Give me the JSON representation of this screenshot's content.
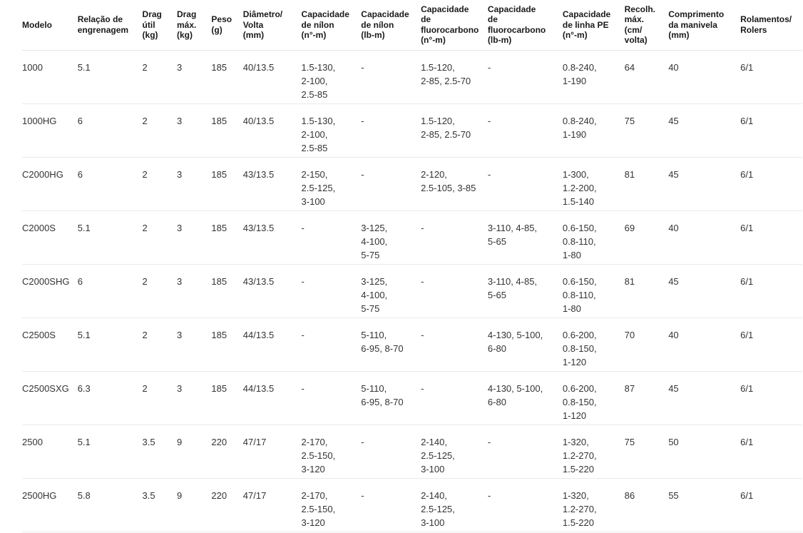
{
  "page": {
    "background_color": "#ffffff",
    "header_text_color": "#1a1a1a",
    "body_text_color": "#333333",
    "divider_color": "#e9e9e9"
  },
  "chart_data": {
    "type": "table",
    "columns": [
      {
        "id": "modelo",
        "label": "Modelo"
      },
      {
        "id": "relacao-de-engrenagem",
        "label": "Relação de\nengrenagem"
      },
      {
        "id": "drag-util-kg",
        "label": "Drag\nútil\n(kg)"
      },
      {
        "id": "drag-max-kg",
        "label": "Drag\nmáx.\n(kg)"
      },
      {
        "id": "peso-g",
        "label": "Peso\n(g)"
      },
      {
        "id": "diametro-volta-mm",
        "label": "Diâmetro/\nVolta\n(mm)"
      },
      {
        "id": "capacidade-de-nilon-no-m",
        "label": "Capacidade\nde nílon\n(n°-m)"
      },
      {
        "id": "capacidade-de-nilon-lb-m",
        "label": "Capacidade\nde nílon\n(lb-m)"
      },
      {
        "id": "capacidade-de-fluorocarbono-no-m",
        "label": "Capacidade\nde\nfluorocarbono\n(n°-m)"
      },
      {
        "id": "capacidade-de-fluorocarbono-lb-m",
        "label": "Capacidade\nde\nfluorocarbono\n(lb-m)"
      },
      {
        "id": "capacidade-de-linha-pe-no-m",
        "label": "Capacidade\nde linha PE\n(n°-m)"
      },
      {
        "id": "recolhimento-max-cm-volta",
        "label": "Recolh.\nmáx.\n(cm/\nvolta)"
      },
      {
        "id": "comprimento-da-manivela-mm",
        "label": "Comprimento\nda manivela\n(mm)"
      },
      {
        "id": "rolamentos-rolers",
        "label": "Rolamentos/\nRolers"
      }
    ],
    "rows": [
      {
        "cells": [
          "1000",
          "5.1",
          "2",
          "3",
          "185",
          "40/13.5",
          "1.5-130,\n2-100,\n2.5-85",
          "-",
          "1.5-120,\n2-85, 2.5-70",
          "-",
          "0.8-240,\n1-190",
          "64",
          "40",
          "6/1"
        ]
      },
      {
        "cells": [
          "1000HG",
          "6",
          "2",
          "3",
          "185",
          "40/13.5",
          "1.5-130,\n2-100,\n2.5-85",
          "-",
          "1.5-120,\n2-85, 2.5-70",
          "-",
          "0.8-240,\n1-190",
          "75",
          "45",
          "6/1"
        ]
      },
      {
        "cells": [
          "C2000HG",
          "6",
          "2",
          "3",
          "185",
          "43/13.5",
          "2-150,\n2.5-125,\n3-100",
          "-",
          "2-120,\n2.5-105, 3-85",
          "-",
          "1-300,\n1.2-200,\n1.5-140",
          "81",
          "45",
          "6/1"
        ]
      },
      {
        "cells": [
          "C2000S",
          "5.1",
          "2",
          "3",
          "185",
          "43/13.5",
          "-",
          "3-125,\n4-100,\n5-75",
          "-",
          "3-110, 4-85,\n5-65",
          "0.6-150,\n0.8-110,\n1-80",
          "69",
          "40",
          "6/1"
        ]
      },
      {
        "cells": [
          "C2000SHG",
          "6",
          "2",
          "3",
          "185",
          "43/13.5",
          "-",
          "3-125,\n4-100,\n5-75",
          "-",
          "3-110, 4-85,\n5-65",
          "0.6-150,\n0.8-110,\n1-80",
          "81",
          "45",
          "6/1"
        ]
      },
      {
        "cells": [
          "C2500S",
          "5.1",
          "2",
          "3",
          "185",
          "44/13.5",
          "-",
          "5-110,\n6-95, 8-70",
          "-",
          "4-130, 5-100,\n6-80",
          "0.6-200,\n0.8-150,\n1-120",
          "70",
          "40",
          "6/1"
        ]
      },
      {
        "cells": [
          "C2500SXG",
          "6.3",
          "2",
          "3",
          "185",
          "44/13.5",
          "-",
          "5-110,\n6-95, 8-70",
          "-",
          "4-130, 5-100,\n6-80",
          "0.6-200,\n0.8-150,\n1-120",
          "87",
          "45",
          "6/1"
        ]
      },
      {
        "cells": [
          "2500",
          "5.1",
          "3.5",
          "9",
          "220",
          "47/17",
          "2-170,\n2.5-150,\n3-120",
          "-",
          "2-140,\n2.5-125,\n3-100",
          "-",
          "1-320,\n1.2-270,\n1.5-220",
          "75",
          "50",
          "6/1"
        ]
      },
      {
        "cells": [
          "2500HG",
          "5.8",
          "3.5",
          "9",
          "220",
          "47/17",
          "2-170,\n2.5-150,\n3-120",
          "-",
          "2-140,\n2.5-125,\n3-100",
          "-",
          "1-320,\n1.2-270,\n1.5-220",
          "86",
          "55",
          "6/1"
        ]
      }
    ]
  }
}
